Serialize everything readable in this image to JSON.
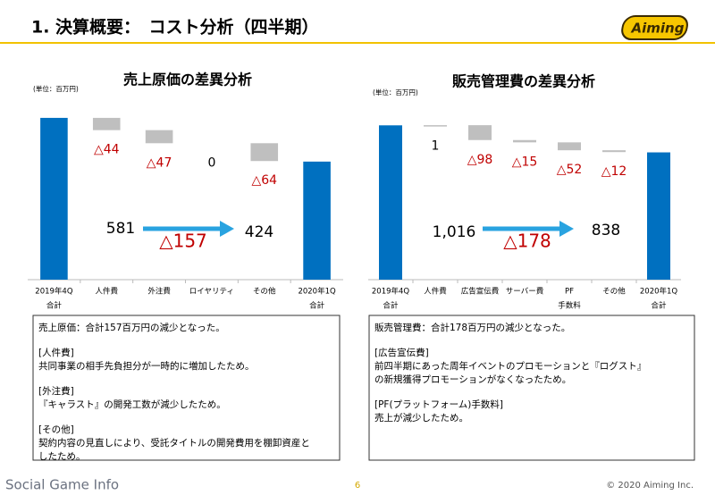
{
  "header": {
    "title": "1. 決算概要：　コスト分析（四半期）",
    "logo": "Aiming"
  },
  "footer": {
    "source": "Social Game Info",
    "page": "6",
    "copyright": "© 2020 Aiming Inc."
  },
  "chart_data": [
    {
      "type": "waterfall",
      "title": "売上原価の差異分析",
      "unit": "(単位：百万円)",
      "categories": [
        [
          "2019年4Q",
          "合計"
        ],
        [
          "人件費"
        ],
        [
          "外注費"
        ],
        [
          "ロイヤリティ"
        ],
        [
          "その他"
        ],
        [
          "2020年1Q",
          "合計"
        ]
      ],
      "values": [
        581,
        -44,
        -47,
        0,
        -64,
        424
      ],
      "value_labels": [
        "581",
        "△44",
        "△47",
        "0",
        "△64",
        "424"
      ],
      "annotation": "△157",
      "total_color": "#0070c0",
      "delta_color": "#bfbfbf",
      "negative_label_color": "#c00000",
      "ylim": [
        0,
        600
      ],
      "notes": [
        [
          "売上原価：合計157百万円の減少となった。"
        ],
        [
          "[人件費]",
          "共同事業の相手先負担分が一時的に増加したため。"
        ],
        [
          "[外注費]",
          "『キャラスト』の開発工数が減少したため。"
        ],
        [
          "[その他]",
          "契約内容の見直しにより、受託タイトルの開発費用を棚卸資産と",
          "したため。"
        ]
      ]
    },
    {
      "type": "waterfall",
      "title": "販売管理費の差異分析",
      "unit": "(単位：百万円)",
      "categories": [
        [
          "2019年4Q",
          "合計"
        ],
        [
          "人件費"
        ],
        [
          "広告宣伝費"
        ],
        [
          "サーバー費"
        ],
        [
          "PF",
          "手数料"
        ],
        [
          "その他"
        ],
        [
          "2020年1Q",
          "合計"
        ]
      ],
      "values": [
        1016,
        1,
        -98,
        -15,
        -52,
        -12,
        838
      ],
      "value_labels": [
        "1,016",
        "1",
        "△98",
        "△15",
        "△52",
        "△12",
        "838"
      ],
      "annotation": "△178",
      "total_color": "#0070c0",
      "delta_color": "#bfbfbf",
      "negative_label_color": "#c00000",
      "ylim": [
        0,
        1100
      ],
      "notes": [
        [
          "販売管理費：合計178百万円の減少となった。"
        ],
        [
          "[広告宣伝費]",
          "前四半期にあった周年イベントのプロモーションと『ログスト』",
          "の新規獲得プロモーションがなくなったため。"
        ],
        [
          "[PF(プラットフォーム)手数料]",
          "売上が減少したため。"
        ]
      ]
    }
  ]
}
